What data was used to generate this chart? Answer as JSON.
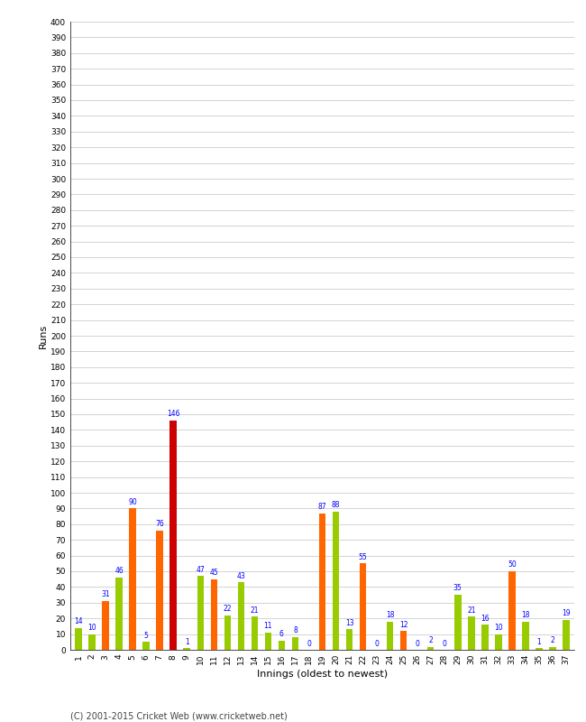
{
  "xlabel": "Innings (oldest to newest)",
  "ylabel": "Runs",
  "background_color": "#ffffff",
  "grid_color": "#cccccc",
  "ylim": [
    0,
    400
  ],
  "footer": "(C) 2001-2015 Cricket Web (www.cricketweb.net)",
  "innings_data": [
    {
      "inning": "1",
      "value": 14,
      "color": "#99cc00"
    },
    {
      "inning": "2",
      "value": 10,
      "color": "#99cc00"
    },
    {
      "inning": "3",
      "value": 31,
      "color": "#ff6600"
    },
    {
      "inning": "4",
      "value": 46,
      "color": "#99cc00"
    },
    {
      "inning": "5",
      "value": 90,
      "color": "#ff6600"
    },
    {
      "inning": "6",
      "value": 5,
      "color": "#99cc00"
    },
    {
      "inning": "7",
      "value": 76,
      "color": "#ff6600"
    },
    {
      "inning": "8",
      "value": 146,
      "color": "#cc0000"
    },
    {
      "inning": "9",
      "value": 1,
      "color": "#99cc00"
    },
    {
      "inning": "10",
      "value": 47,
      "color": "#99cc00"
    },
    {
      "inning": "11",
      "value": 45,
      "color": "#ff6600"
    },
    {
      "inning": "12",
      "value": 22,
      "color": "#99cc00"
    },
    {
      "inning": "13",
      "value": 43,
      "color": "#99cc00"
    },
    {
      "inning": "14",
      "value": 21,
      "color": "#99cc00"
    },
    {
      "inning": "15",
      "value": 11,
      "color": "#99cc00"
    },
    {
      "inning": "16",
      "value": 6,
      "color": "#99cc00"
    },
    {
      "inning": "17",
      "value": 8,
      "color": "#99cc00"
    },
    {
      "inning": "18",
      "value": 0,
      "color": "#99cc00"
    },
    {
      "inning": "19",
      "value": 87,
      "color": "#ff6600"
    },
    {
      "inning": "20",
      "value": 88,
      "color": "#99cc00"
    },
    {
      "inning": "21",
      "value": 13,
      "color": "#99cc00"
    },
    {
      "inning": "22",
      "value": 55,
      "color": "#ff6600"
    },
    {
      "inning": "23",
      "value": 0,
      "color": "#99cc00"
    },
    {
      "inning": "24",
      "value": 18,
      "color": "#99cc00"
    },
    {
      "inning": "25",
      "value": 12,
      "color": "#ff6600"
    },
    {
      "inning": "26",
      "value": 0,
      "color": "#99cc00"
    },
    {
      "inning": "27",
      "value": 2,
      "color": "#99cc00"
    },
    {
      "inning": "28",
      "value": 0,
      "color": "#ff6600"
    },
    {
      "inning": "29",
      "value": 35,
      "color": "#99cc00"
    },
    {
      "inning": "30",
      "value": 21,
      "color": "#99cc00"
    },
    {
      "inning": "31",
      "value": 16,
      "color": "#99cc00"
    },
    {
      "inning": "32",
      "value": 10,
      "color": "#99cc00"
    },
    {
      "inning": "33",
      "value": 50,
      "color": "#ff6600"
    },
    {
      "inning": "34",
      "value": 18,
      "color": "#99cc00"
    },
    {
      "inning": "35",
      "value": 1,
      "color": "#99cc00"
    },
    {
      "inning": "36",
      "value": 2,
      "color": "#99cc00"
    },
    {
      "inning": "37",
      "value": 19,
      "color": "#99cc00"
    }
  ]
}
